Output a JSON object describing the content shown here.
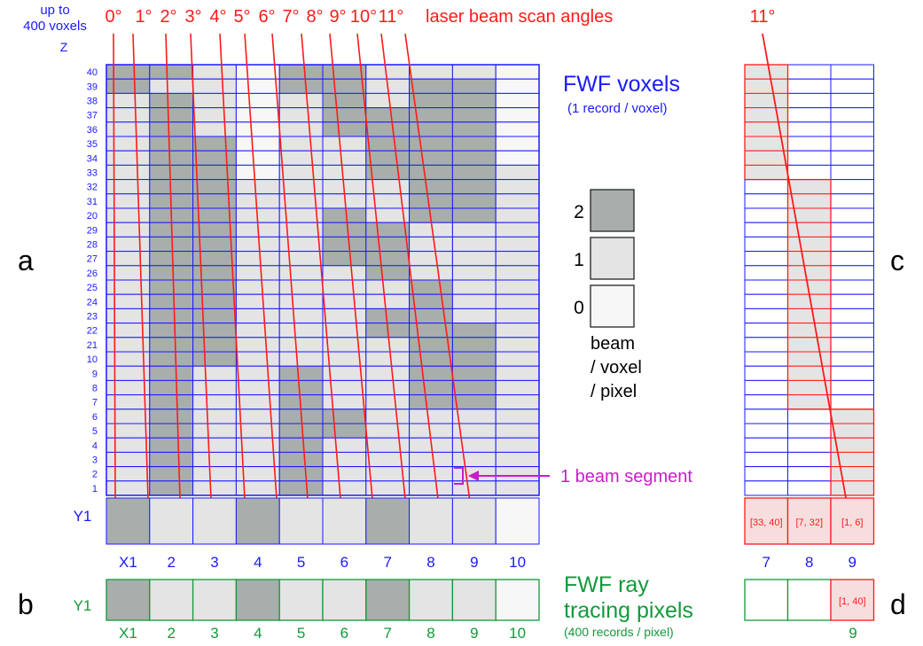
{
  "header": {
    "voxel_count": "up to\n400 voxels",
    "z_axis": "Z",
    "angles": [
      "0°",
      "1°",
      "2°",
      "3°",
      "4°",
      "5°",
      "6°",
      "7°",
      "8°",
      "9°",
      "10°",
      "11°"
    ],
    "angles_caption": "laser beam scan angles"
  },
  "panel_letters": {
    "a": "a",
    "b": "b",
    "c": "c",
    "d": "d"
  },
  "z_labels": [
    "40",
    "39",
    "38",
    "37",
    "36",
    "35",
    "34",
    "33",
    "32",
    "31",
    "20",
    "29",
    "28",
    "27",
    "26",
    "25",
    "24",
    "23",
    "22",
    "21",
    "10",
    "9",
    "8",
    "7",
    "6",
    "5",
    "4",
    "3",
    "2",
    "1"
  ],
  "voxel_grid": {
    "columns": 10,
    "rows": 30,
    "shade_rows_top_to_bottom": [
      "2210221110",
      "2110221220",
      "1210121220",
      "1210122220",
      "1210122220",
      "1220112220",
      "1220112220",
      "1220112221",
      "1221111221",
      "1221111221",
      "1221121221",
      "1221122111",
      "1221122111",
      "1221122111",
      "1221112111",
      "1221111211",
      "1221111211",
      "1221112211",
      "1221112221",
      "1221111221",
      "1221111221",
      "1211211221",
      "1211211221",
      "1211211221",
      "1211221111",
      "1211221111",
      "1211211111",
      "1211211111",
      "1211211111",
      "1211211111"
    ],
    "y_row_label": "Y1",
    "y_row_shades": [
      2,
      1,
      1,
      2,
      1,
      1,
      2,
      1,
      1,
      0
    ],
    "x_labels": [
      "X1",
      "2",
      "3",
      "4",
      "5",
      "6",
      "7",
      "8",
      "9",
      "10"
    ]
  },
  "fwf_voxels": {
    "title": "FWF voxels",
    "subtitle": "(1 record / voxel)"
  },
  "legend": {
    "items": [
      {
        "value": "2",
        "color": "#a8aeab"
      },
      {
        "value": "1",
        "color": "#e4e4e4"
      },
      {
        "value": "0",
        "color": "#f7f7f7"
      }
    ],
    "caption_lines": [
      "beam",
      "/ voxel",
      "/ pixel"
    ]
  },
  "beam_segment_label": "1 beam segment",
  "ray_tracing": {
    "y_label": "Y1",
    "shades": [
      2,
      1,
      1,
      2,
      1,
      1,
      2,
      1,
      1,
      0
    ],
    "x_labels": [
      "X1",
      "2",
      "3",
      "4",
      "5",
      "6",
      "7",
      "8",
      "9",
      "10"
    ],
    "title_lines": [
      "FWF ray",
      "tracing pixels"
    ],
    "subtitle": "(400 records / pixel)"
  },
  "detail_c": {
    "angle": "11°",
    "column_labels": [
      "7",
      "8",
      "9"
    ],
    "ranges": [
      "[33, 40]",
      "[7, 32]",
      "[1, 6]"
    ]
  },
  "detail_d": {
    "range": "[1, 40]",
    "column_label": "9"
  },
  "colors": {
    "blue": "#1a1aff",
    "red": "#ff1a1a",
    "green": "#129a3a",
    "magenta": "#c81ec8",
    "dark": "#a8aeab",
    "light": "#e4e4e4",
    "empty": "#f7f7f7",
    "cell_red": "#f6dede"
  }
}
